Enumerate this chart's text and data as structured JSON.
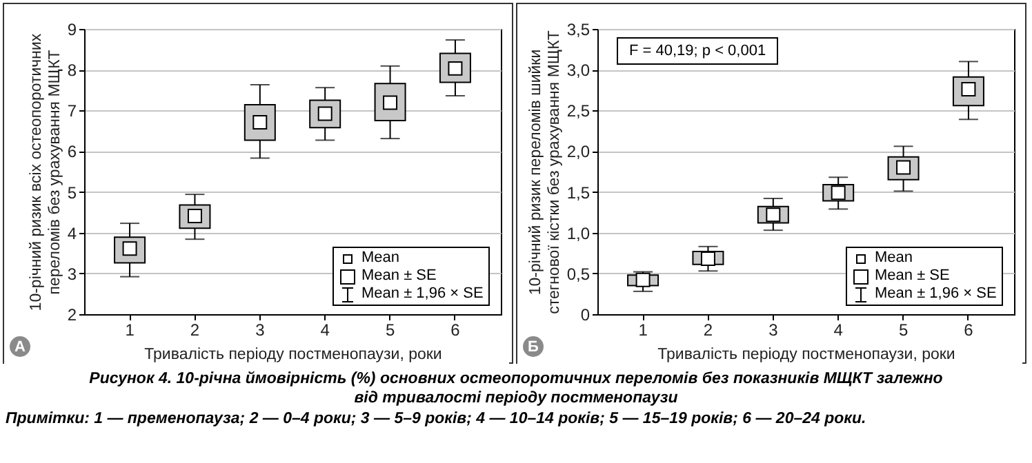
{
  "chart_data": [
    {
      "type": "box",
      "ylabel": "10-річний ризик всіх остеопоротичних переломів без урахування МЩКТ",
      "xlabel": "Тривалість періоду постменопаузи, роки",
      "categories": [
        "1",
        "2",
        "3",
        "4",
        "5",
        "6"
      ],
      "boxes": [
        {
          "low": 2.92,
          "q1": 3.26,
          "median": 3.61,
          "q3": 3.89,
          "high": 4.23
        },
        {
          "low": 3.84,
          "q1": 4.11,
          "median": 4.41,
          "q3": 4.68,
          "high": 4.94
        },
        {
          "low": 5.83,
          "q1": 6.27,
          "median": 6.71,
          "q3": 7.14,
          "high": 7.63
        },
        {
          "low": 6.27,
          "q1": 6.58,
          "median": 6.92,
          "q3": 7.25,
          "high": 7.56
        },
        {
          "low": 6.31,
          "q1": 6.75,
          "median": 7.19,
          "q3": 7.66,
          "high": 8.09
        },
        {
          "low": 7.36,
          "q1": 7.69,
          "median": 8.03,
          "q3": 8.4,
          "high": 8.73
        }
      ],
      "color": "#c8c8c8",
      "marker": "square",
      "ylim": [
        2,
        9
      ],
      "yticks": [
        2,
        3,
        4,
        5,
        6,
        7,
        8,
        9
      ],
      "grid": "y",
      "annotations": [
        "А",
        "Mean",
        "Mean ± SE",
        "Mean ± 1,96 × SE"
      ]
    },
    {
      "type": "box",
      "ylabel": "10-річний ризик переломів шийки стегнової кістки без урахування МЩКТ",
      "xlabel": "Тривалість періоду постменопаузи, роки",
      "categories": [
        "1",
        "2",
        "3",
        "4",
        "5",
        "6"
      ],
      "boxes": [
        {
          "low": 0.28,
          "q1": 0.35,
          "median": 0.42,
          "q3": 0.48,
          "high": 0.52
        },
        {
          "low": 0.53,
          "q1": 0.61,
          "median": 0.68,
          "q3": 0.77,
          "high": 0.83
        },
        {
          "low": 1.03,
          "q1": 1.12,
          "median": 1.22,
          "q3": 1.32,
          "high": 1.42
        },
        {
          "low": 1.29,
          "q1": 1.39,
          "median": 1.49,
          "q3": 1.59,
          "high": 1.68
        },
        {
          "low": 1.51,
          "q1": 1.65,
          "median": 1.8,
          "q3": 1.93,
          "high": 2.06
        },
        {
          "low": 2.39,
          "q1": 2.56,
          "median": 2.76,
          "q3": 2.91,
          "high": 3.1
        }
      ],
      "color": "#c8c8c8",
      "marker": "square",
      "ylim": [
        0,
        3.5
      ],
      "yticks": [
        0,
        {
          "value": 0.5,
          "label": "0,5"
        },
        {
          "value": 1,
          "label": "1,0"
        },
        {
          "value": 1.5,
          "label": "1,5"
        },
        {
          "value": 2,
          "label": "2,0"
        },
        {
          "value": 2.5,
          "label": "2,5"
        },
        {
          "value": 3,
          "label": "3,0"
        },
        {
          "value": 3.5,
          "label": "3,5"
        }
      ],
      "grid": "y",
      "annotations": [
        "Б",
        "Mean",
        "Mean ± SE",
        "Mean ± 1,96 × SE",
        "F = 40,19; p < 0,001",
        "Рисунок 4. 10-річна ймовірність (%) основних остеопоротичних переломів без показників МЩКТ залежно від тривалості періоду постменопаузи",
        "Примітки: 1 — пременопауза; 2 — 0–4 роки; 3 — 5–9 років; 4 — 10–14 років; 5 — 15–19 років; 6 — 20–24 роки."
      ]
    }
  ]
}
